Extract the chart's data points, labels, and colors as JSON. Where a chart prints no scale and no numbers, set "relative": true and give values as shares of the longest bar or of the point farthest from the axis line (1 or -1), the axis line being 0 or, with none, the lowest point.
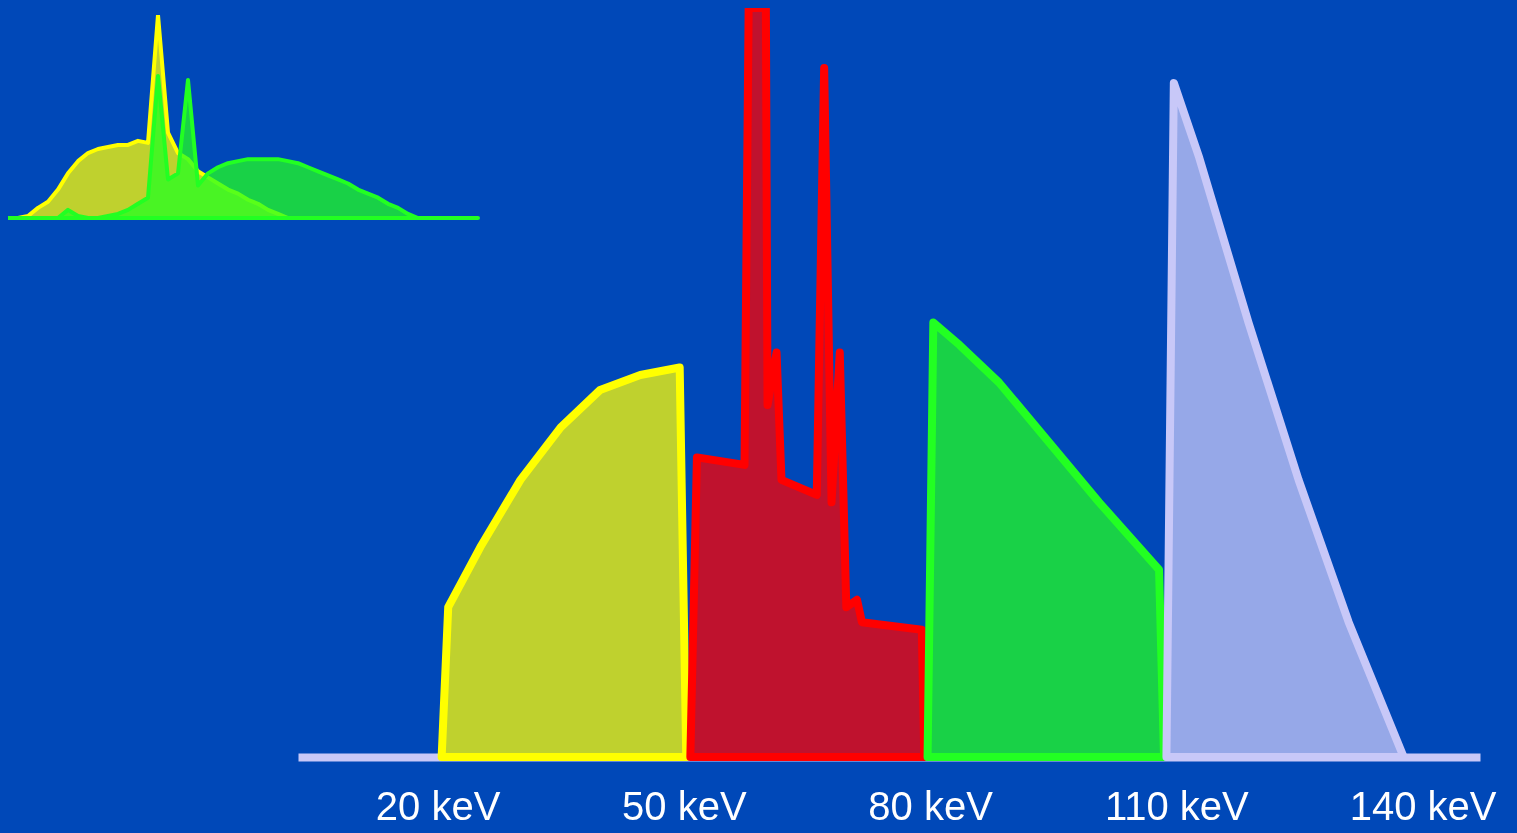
{
  "chart_data": [
    {
      "type": "area",
      "relative": true,
      "xlim": [
        3,
        147
      ],
      "xticks": [
        {
          "value": 20,
          "label": "20 keV"
        },
        {
          "value": 50,
          "label": "50 keV"
        },
        {
          "value": 80,
          "label": "80 keV"
        },
        {
          "value": 110,
          "label": "110 keV"
        },
        {
          "value": 140,
          "label": "140 keV"
        }
      ],
      "grid": false,
      "series": [
        {
          "color": "#ffff00",
          "x": [
            20.5,
            21.3,
            25.2,
            30.1,
            35.0,
            39.8,
            44.7,
            49.5,
            50.3
          ],
          "values": [
            0,
            0.2,
            0.28,
            0.37,
            0.44,
            0.49,
            0.51,
            0.52,
            0
          ]
        },
        {
          "color": "#ff0000",
          "x": [
            50.8,
            51.6,
            57.4,
            57.9,
            60.0,
            60.2,
            61.3,
            61.9,
            66.2,
            67.1,
            68.0,
            69.0,
            69.8,
            71.1,
            71.7,
            79.0,
            79.3
          ],
          "values": [
            0,
            0.4,
            0.39,
            1,
            1,
            0.47,
            0.54,
            0.37,
            0.35,
            0.92,
            0.34,
            0.54,
            0.2,
            0.21,
            0.18,
            0.17,
            0
          ]
        },
        {
          "color": "#22ff22",
          "x": [
            79.7,
            80.4,
            83.6,
            88.4,
            94.5,
            100.6,
            107.9,
            108.5
          ],
          "values": [
            0,
            0.58,
            0.55,
            0.5,
            0.42,
            0.34,
            0.25,
            0
          ]
        },
        {
          "color": "#c8c8f8",
          "x": [
            108.8,
            109.7,
            112.8,
            118.8,
            124.9,
            131.0,
            137.7
          ],
          "values": [
            0,
            0.9,
            0.8,
            0.58,
            0.37,
            0.18,
            0
          ]
        }
      ]
    },
    {
      "type": "area",
      "relative": true,
      "grid": false,
      "categories": [
        null,
        null,
        null,
        null,
        null,
        null,
        null,
        null,
        null,
        null,
        null,
        null,
        null,
        null,
        null,
        null,
        null,
        null,
        null,
        null,
        null,
        null,
        null,
        null,
        null,
        null,
        null,
        null,
        null,
        null,
        null,
        null,
        null,
        null,
        null,
        null,
        null,
        null,
        null,
        null,
        null,
        null,
        null,
        null,
        null,
        null,
        null,
        null
      ],
      "series": [
        {
          "color": "#ffff00",
          "values": [
            0,
            0,
            0.01,
            0.05,
            0.08,
            0.14,
            0.22,
            0.28,
            0.32,
            0.34,
            0.35,
            0.36,
            0.36,
            0.38,
            0.37,
            1,
            0.42,
            0.32,
            0.29,
            0.23,
            0.2,
            0.17,
            0.14,
            0.12,
            0.09,
            0.07,
            0.04,
            0.02,
            0,
            null,
            null,
            null,
            null,
            null,
            null,
            null,
            null,
            null,
            null,
            null,
            null,
            null,
            null,
            null,
            null,
            null,
            null,
            null
          ]
        },
        {
          "color": "#22ff22",
          "values": [
            0,
            0,
            0,
            0,
            0,
            0,
            0.04,
            0.01,
            0,
            0,
            0.01,
            0.02,
            0.04,
            0.07,
            0.1,
            0.7,
            0.19,
            0.22,
            0.68,
            0.16,
            0.22,
            0.25,
            0.27,
            0.28,
            0.29,
            0.29,
            0.29,
            0.29,
            0.28,
            0.27,
            0.25,
            0.23,
            0.21,
            0.19,
            0.17,
            0.14,
            0.12,
            0.1,
            0.07,
            0.05,
            0.02,
            0,
            0,
            0,
            0,
            0,
            0,
            0
          ]
        }
      ]
    }
  ]
}
